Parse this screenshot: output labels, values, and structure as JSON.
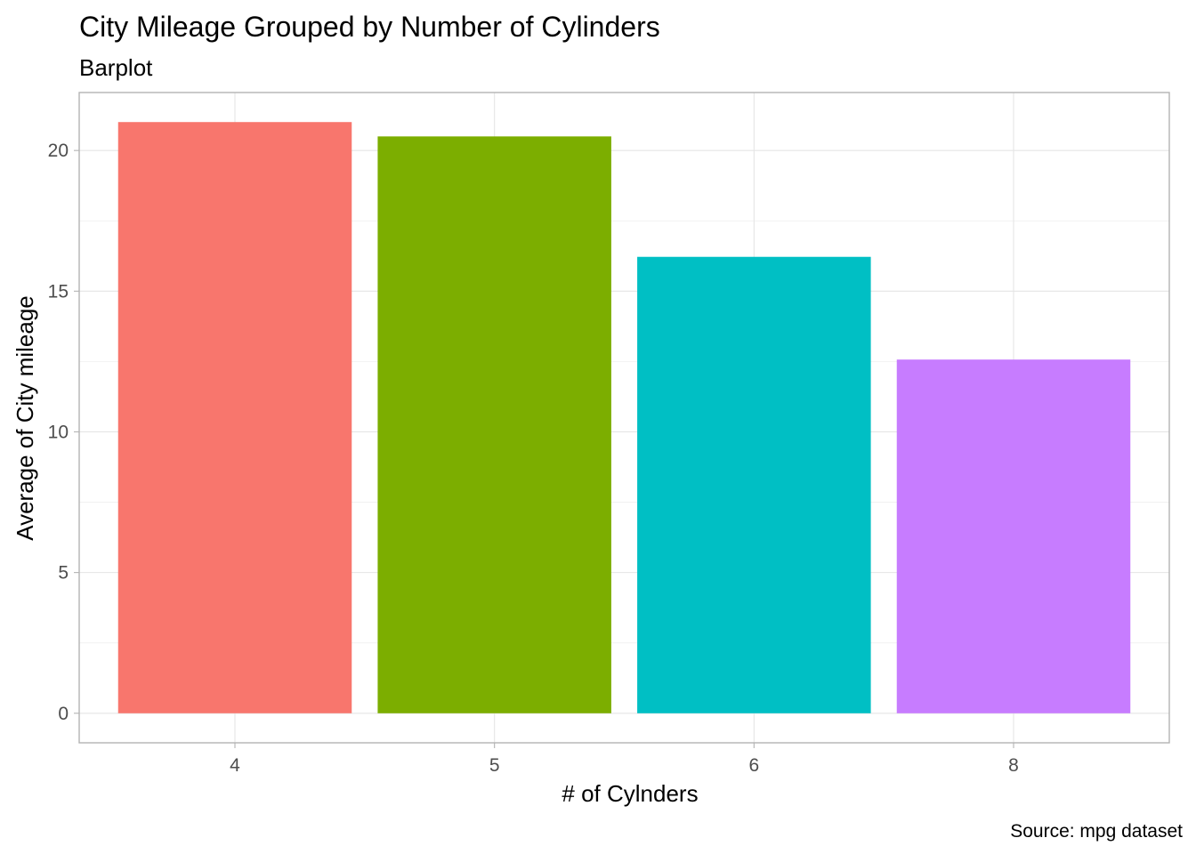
{
  "chart_data": {
    "type": "bar",
    "title": "City Mileage Grouped by Number of Cylinders",
    "subtitle": "Barplot",
    "xlabel": "# of Cylnders",
    "ylabel": "Average of City mileage",
    "caption": "Source: mpg dataset",
    "categories": [
      "4",
      "5",
      "6",
      "8"
    ],
    "values": [
      21.01,
      20.5,
      16.22,
      12.57
    ],
    "colors": [
      "#F8766D",
      "#7CAE00",
      "#00BFC4",
      "#C77CFF"
    ],
    "ylim": [
      -1.05,
      22.06
    ],
    "yticks": [
      0,
      5,
      10,
      15,
      20
    ],
    "ytick_labels": [
      "0",
      "5",
      "10",
      "15",
      "20"
    ],
    "grid": true,
    "legend": "none"
  }
}
